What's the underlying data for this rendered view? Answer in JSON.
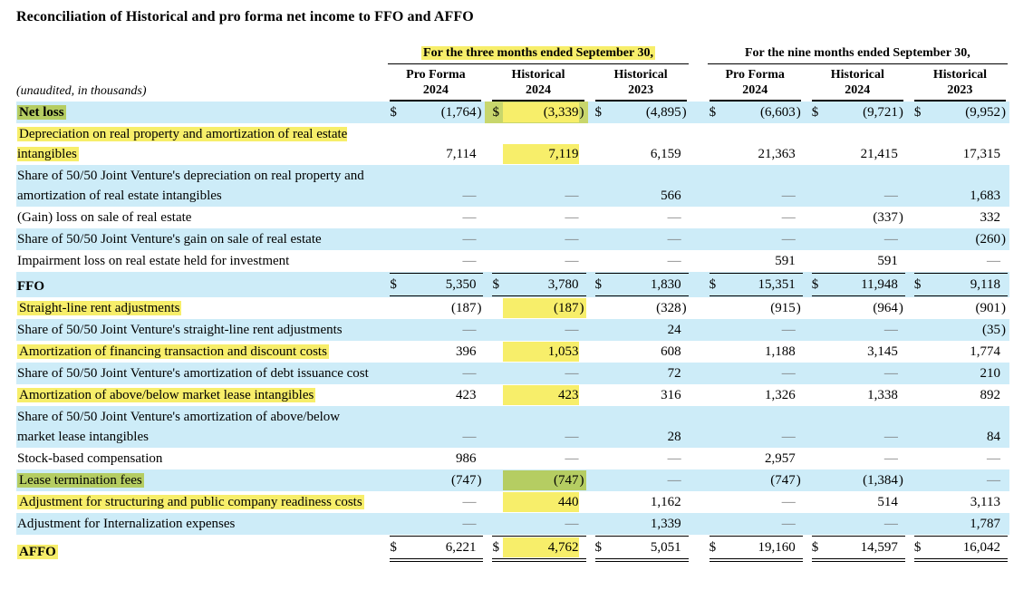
{
  "title": "Reconciliation of Historical and pro forma net income to FFO and AFFO",
  "unaudited_note": "(unaudited, in thousands)",
  "colors": {
    "row_shade_blue": "#cdecf8",
    "highlight_yellow": "#f7ee6a",
    "highlight_green": "#b5cd62",
    "highlight_green_cell": "#c8d66c",
    "dash_gray": "#767676"
  },
  "groups": [
    {
      "label": "For the three months ended September 30,",
      "highlight": "yellow"
    },
    {
      "label": "For the nine months ended September 30,",
      "highlight": "none"
    }
  ],
  "columns": [
    {
      "line1": "Pro Forma",
      "line2": "2024"
    },
    {
      "line1": "Historical",
      "line2": "2024"
    },
    {
      "line1": "Historical",
      "line2": "2023"
    },
    {
      "line1": "Pro Forma",
      "line2": "2024"
    },
    {
      "line1": "Historical",
      "line2": "2024"
    },
    {
      "line1": "Historical",
      "line2": "2023"
    }
  ],
  "rows": [
    {
      "label": "Net loss",
      "bold": true,
      "shade": "blue",
      "label_highlight": "green",
      "dollar": true,
      "rule": "",
      "values": [
        "(1,764)",
        "(3,339)",
        "(4,895)",
        "(6,603)",
        "(9,721)",
        "(9,952)"
      ],
      "value_highlights": [
        "",
        "green-yellow",
        "",
        "",
        "",
        ""
      ]
    },
    {
      "label": "Depreciation on real property and amortization of real estate intangibles",
      "bold": false,
      "shade": "white",
      "label_highlight": "yellow",
      "dollar": false,
      "rule": "",
      "values": [
        "7,114",
        "7,119",
        "6,159",
        "21,363",
        "21,415",
        "17,315"
      ],
      "value_highlights": [
        "",
        "yellow",
        "",
        "",
        "",
        ""
      ]
    },
    {
      "label": "Share of 50/50 Joint Venture's depreciation on real property and amortization of real estate intangibles",
      "bold": false,
      "shade": "blue",
      "label_highlight": "",
      "dollar": false,
      "rule": "",
      "values": [
        "—",
        "—",
        "566",
        "—",
        "—",
        "1,683"
      ],
      "value_highlights": [
        "",
        "",
        "",
        "",
        "",
        ""
      ]
    },
    {
      "label": "(Gain) loss on sale of real estate",
      "bold": false,
      "shade": "white",
      "label_highlight": "",
      "dollar": false,
      "rule": "",
      "values": [
        "—",
        "—",
        "—",
        "—",
        "(337)",
        "332"
      ],
      "value_highlights": [
        "",
        "",
        "",
        "",
        "",
        ""
      ]
    },
    {
      "label": "Share of 50/50 Joint Venture's gain on sale of real estate",
      "bold": false,
      "shade": "blue",
      "label_highlight": "",
      "dollar": false,
      "rule": "",
      "values": [
        "—",
        "—",
        "—",
        "—",
        "—",
        "(260)"
      ],
      "value_highlights": [
        "",
        "",
        "",
        "",
        "",
        ""
      ]
    },
    {
      "label": "Impairment loss on real estate held for investment",
      "bold": false,
      "shade": "white",
      "label_highlight": "",
      "dollar": false,
      "rule": "",
      "values": [
        "—",
        "—",
        "—",
        "591",
        "591",
        "—"
      ],
      "value_highlights": [
        "",
        "",
        "",
        "",
        "",
        ""
      ]
    },
    {
      "label": "FFO",
      "bold": true,
      "shade": "blue",
      "label_highlight": "",
      "dollar": true,
      "rule": "tb",
      "values": [
        "5,350",
        "3,780",
        "1,830",
        "15,351",
        "11,948",
        "9,118"
      ],
      "value_highlights": [
        "",
        "",
        "",
        "",
        "",
        ""
      ]
    },
    {
      "label": "Straight-line rent adjustments",
      "bold": false,
      "shade": "white",
      "label_highlight": "yellow",
      "dollar": false,
      "rule": "",
      "values": [
        "(187)",
        "(187)",
        "(328)",
        "(915)",
        "(964)",
        "(901)"
      ],
      "value_highlights": [
        "",
        "yellow",
        "",
        "",
        "",
        ""
      ]
    },
    {
      "label": "Share of 50/50 Joint Venture's straight-line rent adjustments",
      "bold": false,
      "shade": "blue",
      "label_highlight": "",
      "dollar": false,
      "rule": "",
      "values": [
        "—",
        "—",
        "24",
        "—",
        "—",
        "(35)"
      ],
      "value_highlights": [
        "",
        "",
        "",
        "",
        "",
        ""
      ]
    },
    {
      "label": "Amortization of financing transaction and discount costs",
      "bold": false,
      "shade": "white",
      "label_highlight": "yellow",
      "dollar": false,
      "rule": "",
      "values": [
        "396",
        "1,053",
        "608",
        "1,188",
        "3,145",
        "1,774"
      ],
      "value_highlights": [
        "",
        "yellow",
        "",
        "",
        "",
        ""
      ]
    },
    {
      "label": "Share of 50/50 Joint Venture's amortization of debt issuance cost",
      "bold": false,
      "shade": "blue",
      "label_highlight": "",
      "dollar": false,
      "rule": "",
      "values": [
        "—",
        "—",
        "72",
        "—",
        "—",
        "210"
      ],
      "value_highlights": [
        "",
        "",
        "",
        "",
        "",
        ""
      ]
    },
    {
      "label": "Amortization of above/below market lease intangibles",
      "bold": false,
      "shade": "white",
      "label_highlight": "yellow",
      "dollar": false,
      "rule": "",
      "values": [
        "423",
        "423",
        "316",
        "1,326",
        "1,338",
        "892"
      ],
      "value_highlights": [
        "",
        "yellow",
        "",
        "",
        "",
        ""
      ]
    },
    {
      "label": "Share of 50/50 Joint Venture's amortization of above/below market lease intangibles",
      "bold": false,
      "shade": "blue",
      "label_highlight": "",
      "dollar": false,
      "rule": "",
      "values": [
        "—",
        "—",
        "28",
        "—",
        "—",
        "84"
      ],
      "value_highlights": [
        "",
        "",
        "",
        "",
        "",
        ""
      ]
    },
    {
      "label": "Stock-based compensation",
      "bold": false,
      "shade": "white",
      "label_highlight": "",
      "dollar": false,
      "rule": "",
      "values": [
        "986",
        "—",
        "—",
        "2,957",
        "—",
        "—"
      ],
      "value_highlights": [
        "",
        "",
        "",
        "",
        "",
        ""
      ]
    },
    {
      "label": "Lease termination fees",
      "bold": false,
      "shade": "blue",
      "label_highlight": "green",
      "dollar": false,
      "rule": "",
      "values": [
        "(747)",
        "(747)",
        "—",
        "(747)",
        "(1,384)",
        "—"
      ],
      "value_highlights": [
        "",
        "green",
        "",
        "",
        "",
        ""
      ]
    },
    {
      "label": "Adjustment for structuring and public company readiness costs",
      "bold": false,
      "shade": "white",
      "label_highlight": "yellow",
      "dollar": false,
      "rule": "",
      "values": [
        "—",
        "440",
        "1,162",
        "—",
        "514",
        "3,113"
      ],
      "value_highlights": [
        "",
        "yellow",
        "",
        "",
        "",
        ""
      ]
    },
    {
      "label": "Adjustment for Internalization expenses",
      "bold": false,
      "shade": "blue",
      "label_highlight": "",
      "dollar": false,
      "rule": "",
      "values": [
        "—",
        "—",
        "1,339",
        "—",
        "—",
        "1,787"
      ],
      "value_highlights": [
        "",
        "",
        "",
        "",
        "",
        ""
      ]
    },
    {
      "label": "AFFO",
      "bold": true,
      "shade": "white",
      "label_highlight": "yellow",
      "dollar": true,
      "rule": "tdb",
      "values": [
        "6,221",
        "4,762",
        "5,051",
        "19,160",
        "14,597",
        "16,042"
      ],
      "value_highlights": [
        "",
        "yellow",
        "",
        "",
        "",
        ""
      ]
    }
  ]
}
